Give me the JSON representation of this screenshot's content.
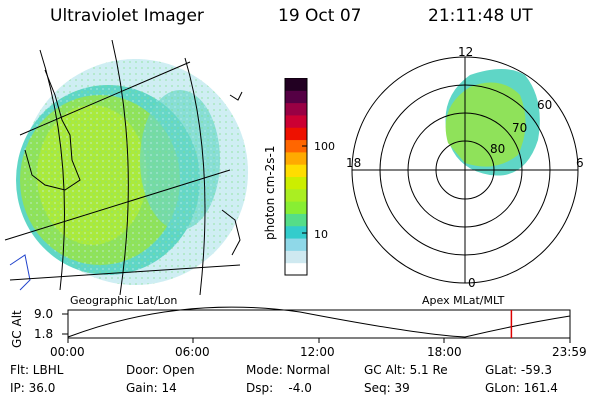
{
  "header": {
    "title": "Ultraviolet Imager",
    "date": "19 Oct 07",
    "time": "21:11:48 UT"
  },
  "colorbar": {
    "label": "photon cm-2s-1",
    "ticks": [
      {
        "value": 100,
        "label": "100"
      },
      {
        "value": 10,
        "label": "10"
      }
    ],
    "colors": [
      "#ffffff",
      "#cfe9f0",
      "#8fd8e8",
      "#33cccc",
      "#55dd88",
      "#88ee33",
      "#aaee22",
      "#ccee00",
      "#ffdd00",
      "#ffaa00",
      "#ff6600",
      "#ee1100",
      "#cc0033",
      "#990044",
      "#550044",
      "#220022"
    ]
  },
  "left_panel": {
    "caption": "Geographic Lat/Lon"
  },
  "right_panel": {
    "caption": "Apex MLat/MLT",
    "mlt_labels": {
      "top": "12",
      "left": "18",
      "right": "6",
      "bottom": "0"
    },
    "lat_labels": [
      "60",
      "70",
      "80"
    ]
  },
  "altitude_plot": {
    "ylabel": "GC Alt",
    "yticks": [
      "9.0",
      "1.8"
    ],
    "xticks": [
      "00:00",
      "06:00",
      "12:00",
      "18:00",
      "23:59"
    ],
    "current_time_marker_color": "#dd0000",
    "current_time_hours": 21.2
  },
  "footer": {
    "flt": "Flt: LBHL",
    "ip": "IP: 36.0",
    "door": "Door: Open",
    "gain": "Gain: 14",
    "mode": "Mode: Normal",
    "dsp": "Dsp:    -4.0",
    "gcalt": "GC Alt: 5.1 Re",
    "seq": "Seq: 39",
    "glat": "GLat: -59.3",
    "glon": "GLon: 161.4"
  }
}
